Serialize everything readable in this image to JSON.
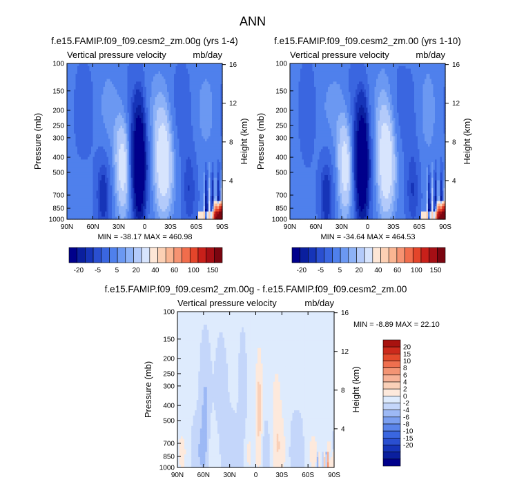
{
  "figure": {
    "title": "ANN"
  },
  "colors": {
    "main_scale": [
      "#00008b",
      "#0a1f9e",
      "#1634b8",
      "#2a4fd0",
      "#3a66e0",
      "#4f80ec",
      "#6b98f2",
      "#8db2f7",
      "#b3cafa",
      "#d7e4fd",
      "#fde6d6",
      "#fcd0b4",
      "#fab592",
      "#f69372",
      "#f16d4c",
      "#e4452a",
      "#c8201a",
      "#a50f15",
      "#7a0510"
    ],
    "diff_scale": [
      "#00008b",
      "#0a1f9e",
      "#1634b8",
      "#2a4fd0",
      "#3a66e0",
      "#5a84ea",
      "#7b9ff0",
      "#9db9f5",
      "#c4d6fa",
      "#deebfd",
      "#fde9dc",
      "#fad0b8",
      "#f7b297",
      "#f39474",
      "#ef6f4f",
      "#e34a2c",
      "#cc2a1c",
      "#a8120f"
    ]
  },
  "chart_data": [
    {
      "type": "heatmap",
      "title": "f.e15.FAMIP.f09_f09.cesm2_zm.00g (yrs 1-4)",
      "left_label": "Vertical pressure velocity",
      "right_label": "mb/day",
      "xlabel": "",
      "ylabel": "Pressure (mb)",
      "y2label": "Height (km)",
      "x_ticks": [
        "90N",
        "60N",
        "30N",
        "0",
        "30S",
        "60S",
        "90S"
      ],
      "y_ticks": [
        "100",
        "150",
        "200",
        "250",
        "300",
        "400",
        "500",
        "700",
        "850",
        "1000"
      ],
      "y2_ticks": [
        "16",
        "12",
        "8",
        "4"
      ],
      "stats": "MIN = -38.17  MAX = 460.98",
      "colorbar": {
        "orientation": "horizontal",
        "labels": [
          "-20",
          "-5",
          "5",
          "20",
          "40",
          "60",
          "100",
          "150"
        ]
      },
      "ylim": [
        1000,
        100
      ],
      "y_scale": "log"
    },
    {
      "type": "heatmap",
      "title": "f.e15.FAMIP.f09_f09.cesm2_zm.00 (yrs 1-10)",
      "left_label": "Vertical pressure velocity",
      "right_label": "mb/day",
      "xlabel": "",
      "ylabel": "Pressure (mb)",
      "y2label": "Height (km)",
      "x_ticks": [
        "90N",
        "60N",
        "30N",
        "0",
        "30S",
        "60S",
        "90S"
      ],
      "y_ticks": [
        "100",
        "150",
        "200",
        "250",
        "300",
        "400",
        "500",
        "700",
        "850",
        "1000"
      ],
      "y2_ticks": [
        "16",
        "12",
        "8",
        "4"
      ],
      "stats": "MIN = -34.64  MAX = 464.53",
      "colorbar": {
        "orientation": "horizontal",
        "labels": [
          "-20",
          "-5",
          "5",
          "20",
          "40",
          "60",
          "100",
          "150"
        ]
      },
      "ylim": [
        1000,
        100
      ],
      "y_scale": "log"
    },
    {
      "type": "heatmap",
      "title": "f.e15.FAMIP.f09_f09.cesm2_zm.00g - f.e15.FAMIP.f09_f09.cesm2_zm.00",
      "left_label": "Vertical pressure velocity",
      "right_label": "mb/day",
      "xlabel": "",
      "ylabel": "Pressure (mb)",
      "y2label": "Height (km)",
      "x_ticks": [
        "90N",
        "60N",
        "30N",
        "0",
        "30S",
        "60S",
        "90S"
      ],
      "y_ticks": [
        "100",
        "150",
        "200",
        "250",
        "300",
        "400",
        "500",
        "700",
        "850",
        "1000"
      ],
      "y2_ticks": [
        "16",
        "12",
        "8",
        "4"
      ],
      "stats": "MIN =  -8.89  MAX = 22.10",
      "colorbar": {
        "orientation": "vertical",
        "labels": [
          "20",
          "15",
          "10",
          "8",
          "6",
          "4",
          "2",
          "0",
          "-2",
          "-4",
          "-6",
          "-8",
          "-10",
          "-15",
          "-20"
        ]
      },
      "ylim": [
        1000,
        100
      ],
      "y_scale": "log"
    }
  ]
}
